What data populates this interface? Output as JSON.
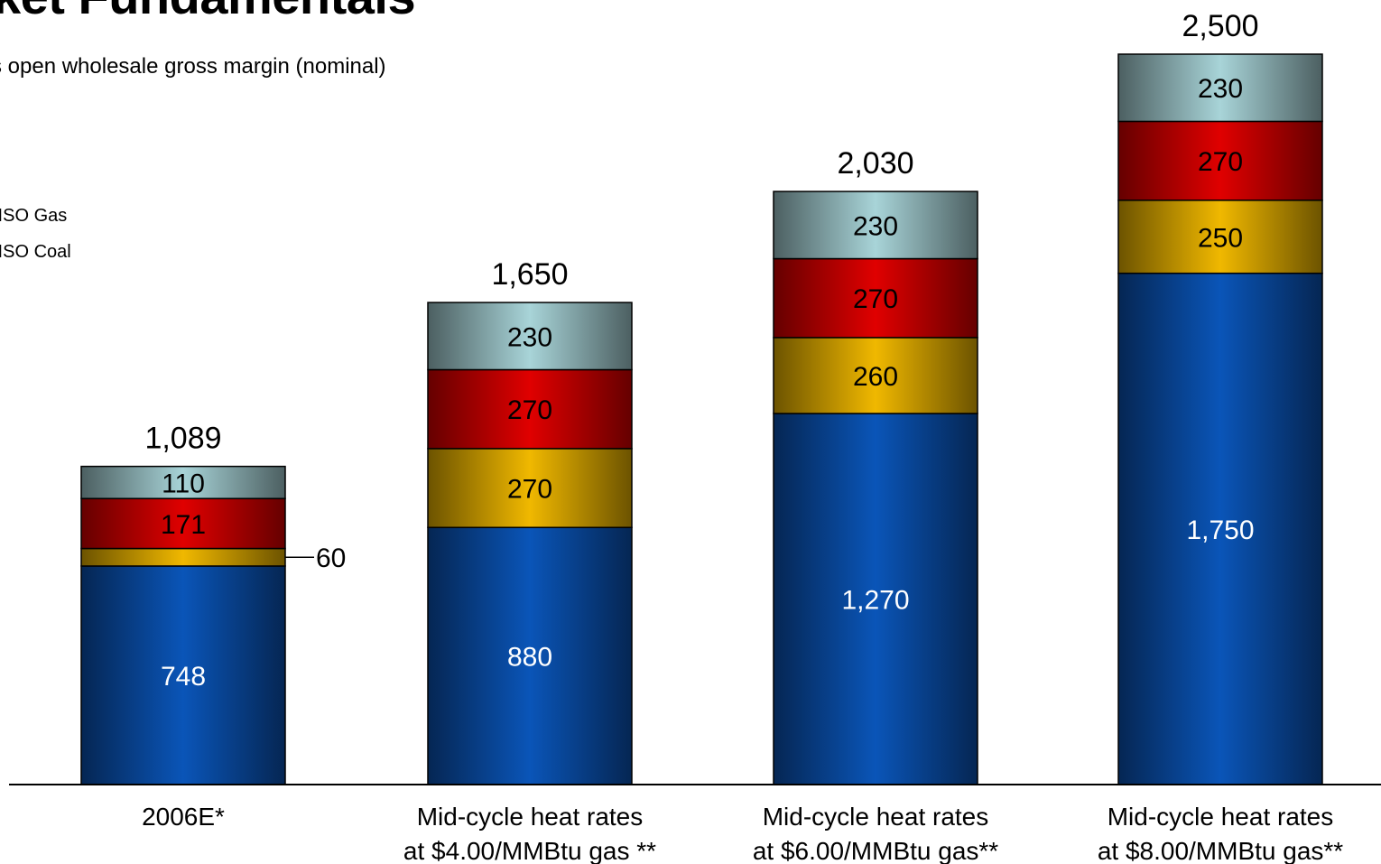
{
  "slide": {
    "title": "ket Fundamentals",
    "subtitle": "s open wholesale gross margin (nominal)"
  },
  "legend": {
    "items": [
      {
        "label": "IISO Gas",
        "color": "#e00000"
      },
      {
        "label": "IISO Coal",
        "color": "#f0b800"
      }
    ]
  },
  "chart_data": {
    "type": "bar",
    "stacked": true,
    "categories": [
      [
        "2006E*"
      ],
      [
        "Mid-cycle heat rates",
        "at $4.00/MMBtu gas **"
      ],
      [
        "Mid-cycle heat rates",
        "at $6.00/MMBtu gas**"
      ],
      [
        "Mid-cycle heat rates",
        "at $8.00/MMBtu gas**"
      ]
    ],
    "series": [
      {
        "color": "#0a55b8",
        "values": [
          748,
          880,
          1270,
          1750
        ]
      },
      {
        "color": "#f0b800",
        "values": [
          60,
          270,
          260,
          250
        ]
      },
      {
        "color": "#e00000",
        "values": [
          171,
          270,
          270,
          270
        ]
      },
      {
        "color": "#a8d4d8",
        "values": [
          110,
          230,
          230,
          230
        ]
      }
    ],
    "totals": [
      "1,089",
      "1,650",
      "2,030",
      "2,500"
    ],
    "value_labels": [
      [
        "748",
        "880",
        "1,270",
        "1,750"
      ],
      [
        "60",
        "270",
        "260",
        "250"
      ],
      [
        "171",
        "270",
        "270",
        "270"
      ],
      [
        "110",
        "230",
        "230",
        "230"
      ]
    ],
    "ylim": [
      0,
      2500
    ],
    "grid": false,
    "legend_position": "left"
  }
}
